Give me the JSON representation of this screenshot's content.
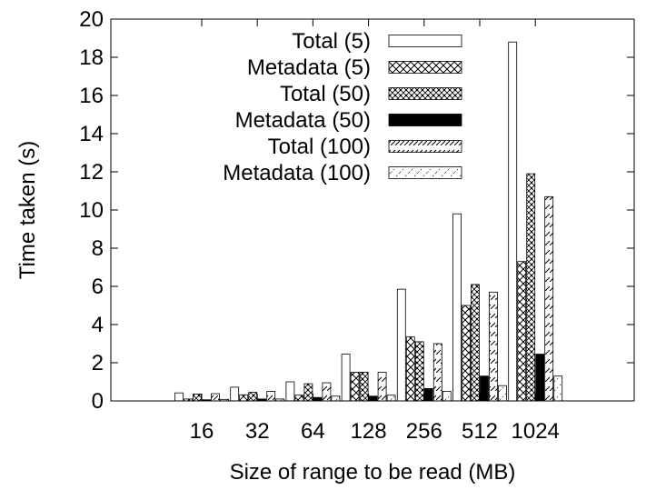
{
  "chart_data": {
    "type": "bar",
    "title": "",
    "xlabel": "Size of range to be read (MB)",
    "ylabel": "Time taken (s)",
    "ylim": [
      0,
      20
    ],
    "yticks": [
      0,
      2,
      4,
      6,
      8,
      10,
      12,
      14,
      16,
      18,
      20
    ],
    "categories": [
      "16",
      "32",
      "64",
      "128",
      "256",
      "512",
      "1024"
    ],
    "legend_position": "top-right",
    "grid": false,
    "series": [
      {
        "name": "Total (5)",
        "pattern": "outline",
        "values": [
          0.42,
          0.72,
          1.0,
          2.45,
          5.85,
          9.8,
          18.8
        ]
      },
      {
        "name": "Metadata (5)",
        "pattern": "crosshatch",
        "values": [
          0.1,
          0.32,
          0.3,
          1.5,
          3.35,
          5.0,
          7.3
        ]
      },
      {
        "name": "Total (50)",
        "pattern": "dotted-cross",
        "values": [
          0.36,
          0.45,
          0.9,
          1.5,
          3.1,
          6.1,
          11.9
        ]
      },
      {
        "name": "Metadata (50)",
        "pattern": "solid-black",
        "values": [
          0.06,
          0.1,
          0.18,
          0.25,
          0.65,
          1.3,
          2.45
        ]
      },
      {
        "name": "Total (100)",
        "pattern": "diagonal-dash",
        "values": [
          0.38,
          0.5,
          0.95,
          1.5,
          3.0,
          5.7,
          10.7
        ]
      },
      {
        "name": "Metadata (100)",
        "pattern": "light-dash",
        "values": [
          0.08,
          0.1,
          0.25,
          0.3,
          0.5,
          0.8,
          1.3
        ]
      }
    ]
  }
}
